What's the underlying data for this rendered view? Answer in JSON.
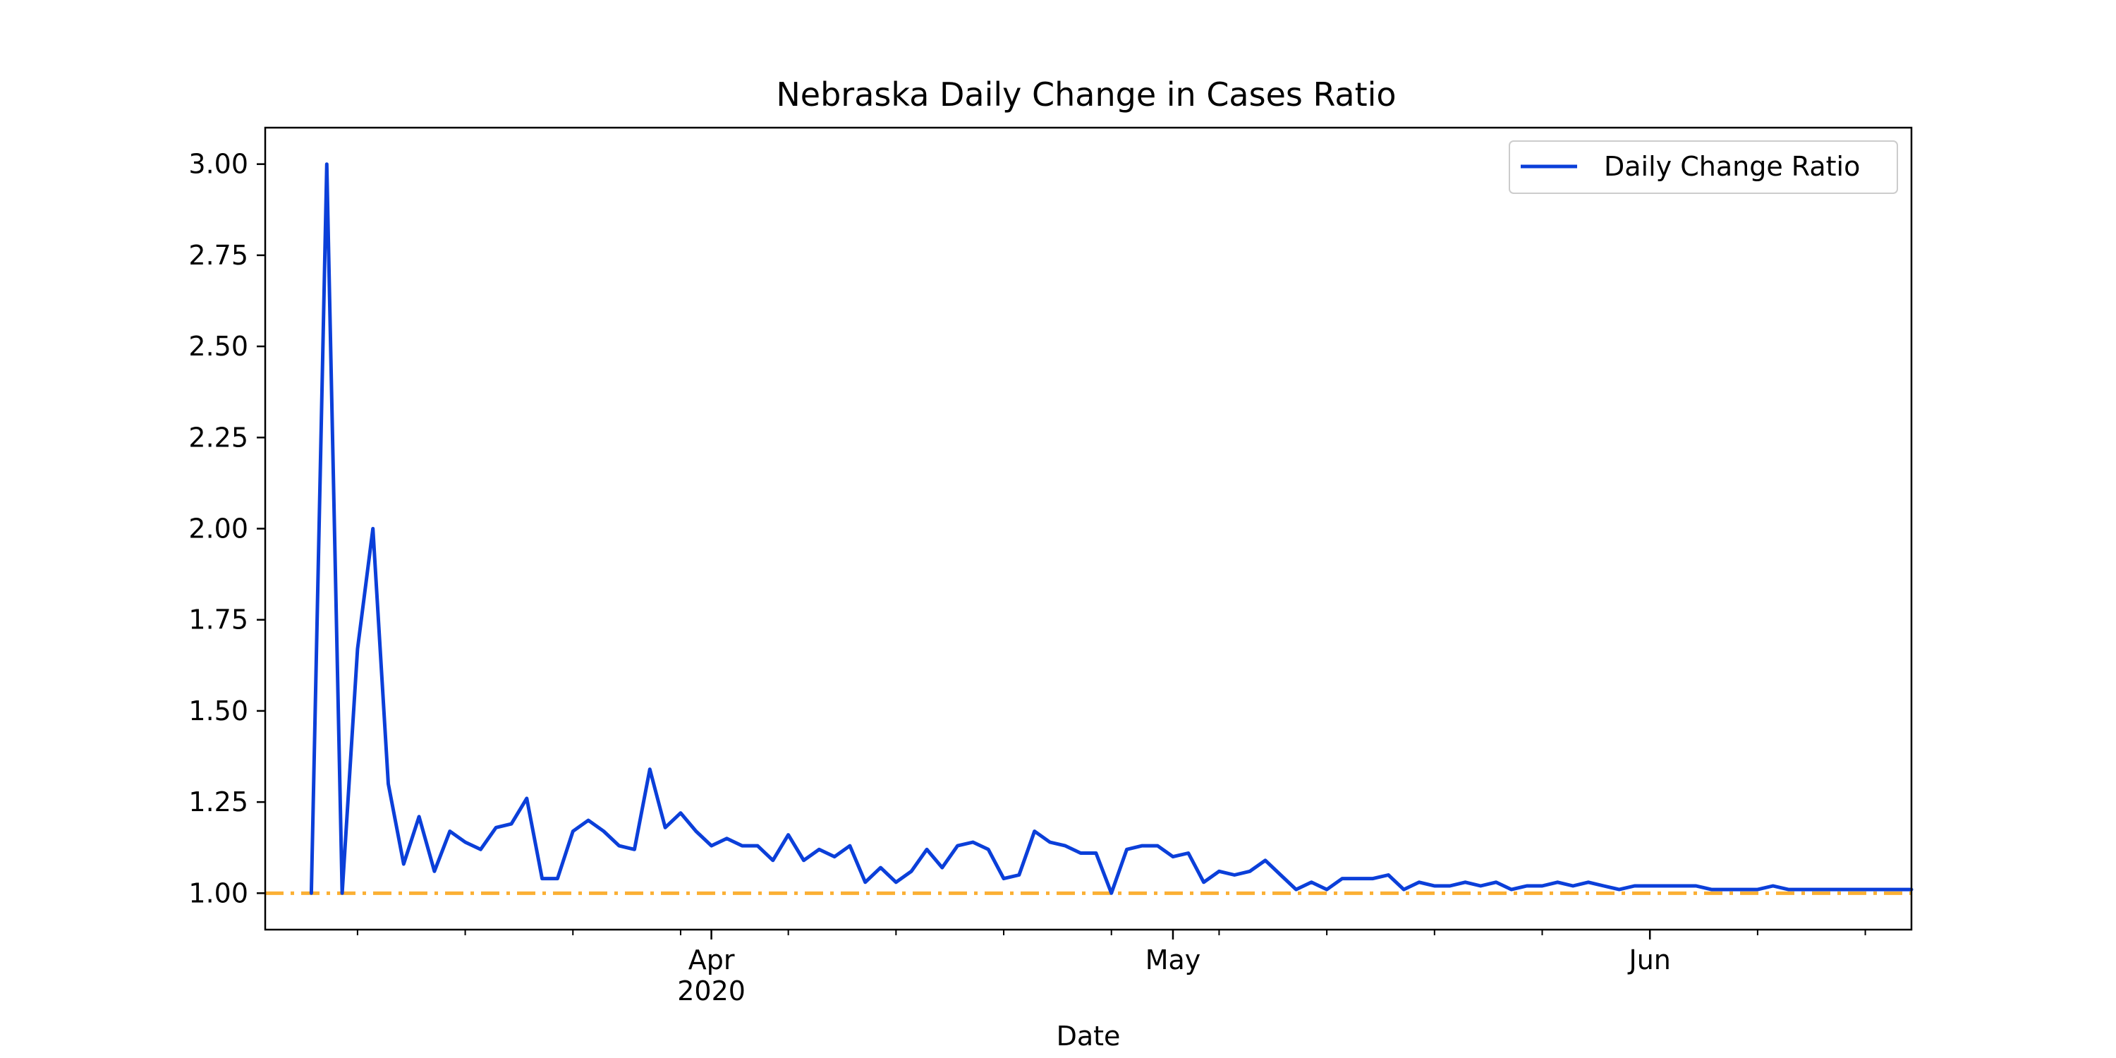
{
  "chart_data": {
    "type": "line",
    "title": "Nebraska Daily Change in Cases Ratio",
    "xlabel": "Date",
    "ylabel": "",
    "ylim": [
      0.9,
      3.1
    ],
    "xlim": [
      "2020-03-03",
      "2020-06-18"
    ],
    "yticks": [
      "1.00",
      "1.25",
      "1.50",
      "1.75",
      "2.00",
      "2.25",
      "2.50",
      "2.75",
      "3.00"
    ],
    "xticks_major": [
      {
        "date": "2020-04-01",
        "label": "Apr",
        "sublabel": "2020"
      },
      {
        "date": "2020-05-01",
        "label": "May",
        "sublabel": ""
      },
      {
        "date": "2020-06-01",
        "label": "Jun",
        "sublabel": ""
      }
    ],
    "legend": {
      "position": "upper right",
      "entries": [
        "Daily Change Ratio"
      ]
    },
    "grid": false,
    "colors": {
      "series": "#0b3fd9",
      "reference": "#fbb034"
    },
    "reference_line": {
      "y": 1.0,
      "style": "dash-dot"
    },
    "series": [
      {
        "name": "Daily Change Ratio",
        "x": [
          "2020-03-06",
          "2020-03-07",
          "2020-03-08",
          "2020-03-09",
          "2020-03-10",
          "2020-03-11",
          "2020-03-12",
          "2020-03-13",
          "2020-03-14",
          "2020-03-15",
          "2020-03-16",
          "2020-03-17",
          "2020-03-18",
          "2020-03-19",
          "2020-03-20",
          "2020-03-21",
          "2020-03-22",
          "2020-03-23",
          "2020-03-24",
          "2020-03-25",
          "2020-03-26",
          "2020-03-27",
          "2020-03-28",
          "2020-03-29",
          "2020-03-30",
          "2020-03-31",
          "2020-04-01",
          "2020-04-02",
          "2020-04-03",
          "2020-04-04",
          "2020-04-05",
          "2020-04-06",
          "2020-04-07",
          "2020-04-08",
          "2020-04-09",
          "2020-04-10",
          "2020-04-11",
          "2020-04-12",
          "2020-04-13",
          "2020-04-14",
          "2020-04-15",
          "2020-04-16",
          "2020-04-17",
          "2020-04-18",
          "2020-04-19",
          "2020-04-20",
          "2020-04-21",
          "2020-04-22",
          "2020-04-23",
          "2020-04-24",
          "2020-04-25",
          "2020-04-26",
          "2020-04-27",
          "2020-04-28",
          "2020-04-29",
          "2020-04-30",
          "2020-05-01",
          "2020-05-02",
          "2020-05-03",
          "2020-05-04",
          "2020-05-05",
          "2020-05-06",
          "2020-05-07",
          "2020-05-08",
          "2020-05-09",
          "2020-05-10",
          "2020-05-11",
          "2020-05-12",
          "2020-05-13",
          "2020-05-14",
          "2020-05-15",
          "2020-05-16",
          "2020-05-17",
          "2020-05-18",
          "2020-05-19",
          "2020-05-20",
          "2020-05-21",
          "2020-05-22",
          "2020-05-23",
          "2020-05-24",
          "2020-05-25",
          "2020-05-26",
          "2020-05-27",
          "2020-05-28",
          "2020-05-29",
          "2020-05-30",
          "2020-05-31",
          "2020-06-01",
          "2020-06-02",
          "2020-06-03",
          "2020-06-04",
          "2020-06-05",
          "2020-06-06",
          "2020-06-07",
          "2020-06-08",
          "2020-06-09",
          "2020-06-10",
          "2020-06-11",
          "2020-06-12",
          "2020-06-13",
          "2020-06-14",
          "2020-06-15",
          "2020-06-16",
          "2020-06-17",
          "2020-06-18"
        ],
        "values": [
          1.0,
          3.0,
          1.0,
          1.67,
          2.0,
          1.3,
          1.08,
          1.21,
          1.06,
          1.17,
          1.14,
          1.12,
          1.18,
          1.19,
          1.26,
          1.04,
          1.04,
          1.17,
          1.2,
          1.17,
          1.13,
          1.12,
          1.34,
          1.18,
          1.22,
          1.17,
          1.13,
          1.15,
          1.13,
          1.13,
          1.09,
          1.16,
          1.09,
          1.12,
          1.1,
          1.13,
          1.03,
          1.07,
          1.03,
          1.06,
          1.12,
          1.07,
          1.13,
          1.14,
          1.12,
          1.04,
          1.05,
          1.17,
          1.14,
          1.13,
          1.11,
          1.11,
          1.0,
          1.12,
          1.13,
          1.13,
          1.1,
          1.11,
          1.03,
          1.06,
          1.05,
          1.06,
          1.09,
          1.05,
          1.01,
          1.03,
          1.01,
          1.04,
          1.04,
          1.04,
          1.05,
          1.01,
          1.03,
          1.02,
          1.02,
          1.03,
          1.02,
          1.03,
          1.01,
          1.02,
          1.02,
          1.03,
          1.02,
          1.03,
          1.02,
          1.01,
          1.02,
          1.02,
          1.02,
          1.02,
          1.02,
          1.01,
          1.01,
          1.01,
          1.01,
          1.02,
          1.01,
          1.01,
          1.01,
          1.01,
          1.01,
          1.01,
          1.01,
          1.01,
          1.01
        ]
      }
    ]
  }
}
